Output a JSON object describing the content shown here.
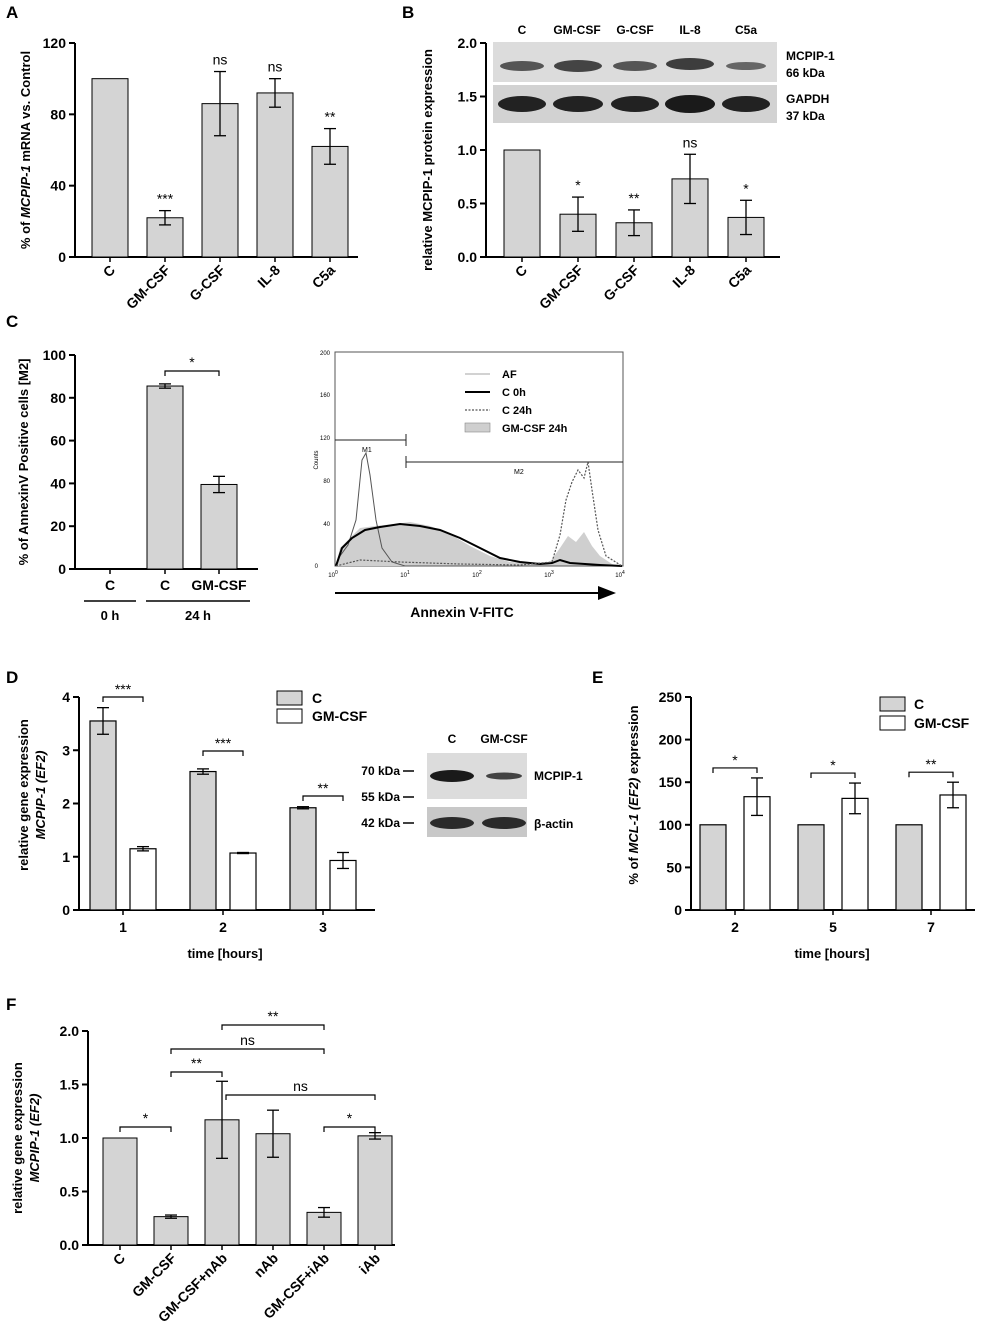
{
  "colors": {
    "gray_bar": "#d4d4d4",
    "white_bar": "#ffffff",
    "axis": "#000000",
    "blot_bg": "#d8d8d8",
    "band": "#3a3a3a"
  },
  "panels": {
    "A": {
      "letter": "A",
      "ylabel_pre": "% of ",
      "ylabel_ital": "MCPIP-1",
      "ylabel_post": " mRNA vs. Control"
    },
    "B": {
      "letter": "B",
      "ylabel": "relative MCPIP-1 protein expression",
      "blot_lanes": [
        "C",
        "GM-CSF",
        "G-CSF",
        "IL-8",
        "C5a"
      ],
      "blot_labels": [
        "MCPIP-1",
        "66 kDa",
        "GAPDH",
        "37 kDa"
      ]
    },
    "C": {
      "letter": "C",
      "ylabel": "% of AnnexinV Positive cells [M2]",
      "group_labels": [
        "0 h",
        "24 h"
      ],
      "flow": {
        "xlabel": "Annexin V-FITC",
        "ylabel": "Counts",
        "yticks": [
          "0",
          "40",
          "80",
          "120",
          "160",
          "200"
        ],
        "xticks": [
          "10",
          "10",
          "10",
          "10",
          "10"
        ],
        "xtick_exp": [
          "0",
          "1",
          "2",
          "3",
          "4"
        ],
        "gate_m1": "M1",
        "gate_m2": "M2",
        "legend": [
          "AF",
          "C 0h",
          "C 24h",
          "GM-CSF 24h"
        ]
      }
    },
    "D": {
      "letter": "D",
      "ylabel1": "relative gene expression",
      "ylabel2_ital": "MCPIP-1 (EF2)",
      "xlabel": "time [hours]",
      "legend": [
        "C",
        "GM-CSF"
      ],
      "blot_lanes": [
        "C",
        "GM-CSF"
      ],
      "blot_markers": [
        "70 kDa",
        "55 kDa",
        "42 kDa"
      ],
      "blot_labels": [
        "MCPIP-1",
        "β-actin"
      ]
    },
    "E": {
      "letter": "E",
      "ylabel_pre": "% of ",
      "ylabel_ital": "MCL-1 (EF2)",
      "ylabel_post": " expression",
      "xlabel": "time [hours]",
      "legend": [
        "C",
        "GM-CSF"
      ]
    },
    "F": {
      "letter": "F",
      "ylabel1": "relative gene expression",
      "ylabel2_ital": "MCPIP-1 (EF2)"
    }
  },
  "chart_data": [
    {
      "panel": "A",
      "type": "bar",
      "categories": [
        "C",
        "GM-CSF",
        "G-CSF",
        "IL-8",
        "C5a"
      ],
      "values": [
        100,
        22,
        86,
        92,
        62
      ],
      "errors": [
        0,
        4,
        18,
        8,
        10
      ],
      "significance": [
        "",
        "***",
        "ns",
        "ns",
        "**"
      ],
      "ylim": [
        0,
        120
      ],
      "yticks": [
        0,
        40,
        80,
        120
      ]
    },
    {
      "panel": "B",
      "type": "bar",
      "categories": [
        "C",
        "GM-CSF",
        "G-CSF",
        "IL-8",
        "C5a"
      ],
      "values": [
        1.0,
        0.4,
        0.32,
        0.73,
        0.37
      ],
      "errors": [
        0,
        0.16,
        0.12,
        0.23,
        0.16
      ],
      "significance": [
        "",
        "*",
        "**",
        "ns",
        "*"
      ],
      "ylim": [
        0,
        2.0
      ],
      "yticks": [
        0.0,
        0.5,
        1.0,
        1.5,
        2.0
      ]
    },
    {
      "panel": "C",
      "type": "bar",
      "categories": [
        "C",
        "C",
        "GM-CSF"
      ],
      "values": [
        0,
        85.5,
        39.5
      ],
      "errors": [
        0,
        1,
        3.8
      ],
      "comparisons": [
        {
          "from": 1,
          "to": 2,
          "label": "*"
        }
      ],
      "ylim": [
        0,
        100
      ],
      "yticks": [
        0,
        20,
        40,
        60,
        80,
        100
      ]
    },
    {
      "panel": "D",
      "type": "bar",
      "x": [
        1,
        2,
        3
      ],
      "series": [
        {
          "name": "C",
          "values": [
            3.55,
            2.6,
            1.92
          ],
          "errors": [
            0.25,
            0.05,
            0.02
          ]
        },
        {
          "name": "GM-CSF",
          "values": [
            1.15,
            1.07,
            0.93
          ],
          "errors": [
            0.04,
            0.01,
            0.15
          ]
        }
      ],
      "significance": [
        "***",
        "***",
        "**"
      ],
      "ylim": [
        0,
        4
      ],
      "yticks": [
        0,
        1,
        2,
        3,
        4
      ]
    },
    {
      "panel": "E",
      "type": "bar",
      "x": [
        2,
        5,
        7
      ],
      "series": [
        {
          "name": "C",
          "values": [
            100,
            100,
            100
          ],
          "errors": [
            0,
            0,
            0
          ]
        },
        {
          "name": "GM-CSF",
          "values": [
            133,
            131,
            135
          ],
          "errors": [
            22,
            18,
            15
          ]
        }
      ],
      "significance": [
        "*",
        "*",
        "**"
      ],
      "ylim": [
        0,
        250
      ],
      "yticks": [
        0,
        50,
        100,
        150,
        200,
        250
      ]
    },
    {
      "panel": "F",
      "type": "bar",
      "categories": [
        "C",
        "GM-CSF",
        "GM-CSF+nAb",
        "nAb",
        "GM-CSF+iAb",
        "iAb"
      ],
      "values": [
        1.0,
        0.265,
        1.17,
        1.04,
        0.305,
        1.02
      ],
      "errors": [
        0,
        0.015,
        0.36,
        0.22,
        0.045,
        0.03
      ],
      "comparisons": [
        {
          "from": 0,
          "to": 1,
          "label": "*"
        },
        {
          "from": 1,
          "to": 2,
          "label": "**"
        },
        {
          "from": 2,
          "to": 5,
          "label": "ns"
        },
        {
          "from": 1,
          "to": 4,
          "label": "ns"
        },
        {
          "from": 2,
          "to": 4,
          "label": "**"
        },
        {
          "from": 4,
          "to": 5,
          "label": "*"
        }
      ],
      "ylim": [
        0,
        2.0
      ],
      "yticks": [
        0.0,
        0.5,
        1.0,
        1.5,
        2.0
      ]
    }
  ]
}
